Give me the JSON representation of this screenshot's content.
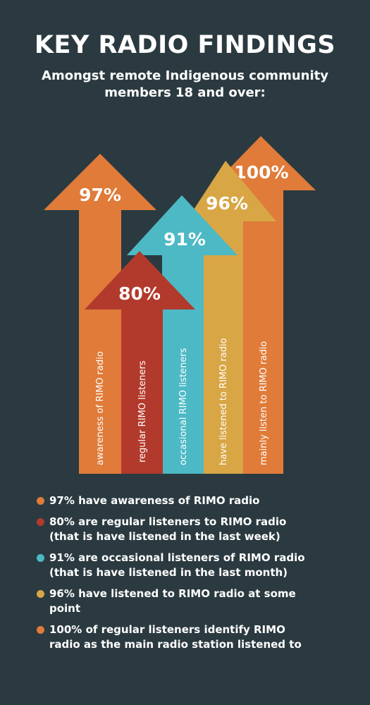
{
  "title": "KEY RADIO FINDINGS",
  "subtitle": "Amongst remote Indigenous community members 18 and over:",
  "colors": {
    "background": "#2b3a40",
    "orange": "#e07b39",
    "red": "#b23a2c",
    "teal": "#4cb9c5",
    "gold": "#d8a645"
  },
  "arrows": [
    {
      "value": "97%",
      "label": "awareness of RIMO radio",
      "color": "#e07b39"
    },
    {
      "value": "80%",
      "label": "regular RIMO  listeners",
      "color": "#b23a2c"
    },
    {
      "value": "91%",
      "label": "occasional RIMO listeners",
      "color": "#4cb9c5"
    },
    {
      "value": "96%",
      "label": "have listened to RIMO radio",
      "color": "#d8a645"
    },
    {
      "value": "100%",
      "label": "mainly listen to RIMO radio",
      "color": "#e07b39"
    }
  ],
  "legend": [
    {
      "color": "#e07b39",
      "lines": [
        "97% have awareness of RIMO radio"
      ]
    },
    {
      "color": "#b23a2c",
      "lines": [
        "80% are regular listeners to RIMO radio",
        "(that is have listened in the last week)"
      ]
    },
    {
      "color": "#4cb9c5",
      "lines": [
        "91% are occasional listeners of RIMO radio",
        "(that is have listened in the last month)"
      ]
    },
    {
      "color": "#d8a645",
      "lines": [
        "96% have listened to RIMO radio at some",
        "point"
      ]
    },
    {
      "color": "#e07b39",
      "lines": [
        "100% of regular listeners identify RIMO",
        "radio as the main radio station listened to"
      ]
    }
  ]
}
